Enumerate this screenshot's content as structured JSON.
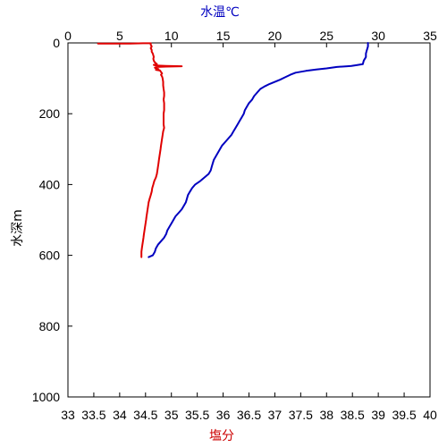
{
  "chart_data": {
    "type": "line",
    "axes": {
      "depth": {
        "label": "水深m",
        "range": [
          0,
          1000
        ],
        "inverted": true,
        "ticks": [
          0,
          200,
          400,
          600,
          800,
          1000
        ]
      },
      "temperature": {
        "label": "水温℃",
        "position": "top",
        "range": [
          0,
          35
        ],
        "ticks": [
          0,
          5,
          10,
          15,
          20,
          25,
          30,
          35
        ]
      },
      "salinity": {
        "label": "塩分",
        "position": "bottom",
        "range": [
          33,
          40
        ],
        "ticks": [
          33,
          33.5,
          34,
          34.5,
          35,
          35.5,
          36,
          36.5,
          37,
          37.5,
          38,
          38.5,
          39,
          39.5,
          40
        ]
      }
    },
    "grid": false,
    "legend": "none",
    "series": [
      {
        "axis": "salinity",
        "color": "#e00000",
        "points": [
          [
            33.58,
            2
          ],
          [
            33.9,
            2
          ],
          [
            34.2,
            2
          ],
          [
            34.45,
            1
          ],
          [
            34.6,
            1
          ],
          [
            34.6,
            5
          ],
          [
            34.62,
            10
          ],
          [
            34.6,
            15
          ],
          [
            34.62,
            20
          ],
          [
            34.62,
            25
          ],
          [
            34.64,
            30
          ],
          [
            34.65,
            35
          ],
          [
            34.66,
            40
          ],
          [
            34.65,
            45
          ],
          [
            34.66,
            50
          ],
          [
            34.68,
            55
          ],
          [
            34.72,
            60
          ],
          [
            34.66,
            62
          ],
          [
            34.7,
            64
          ],
          [
            34.9,
            65
          ],
          [
            35.2,
            66
          ],
          [
            34.9,
            67
          ],
          [
            34.72,
            68
          ],
          [
            34.68,
            70
          ],
          [
            34.7,
            72
          ],
          [
            34.75,
            74
          ],
          [
            34.7,
            76
          ],
          [
            34.78,
            78
          ],
          [
            34.8,
            82
          ],
          [
            34.82,
            86
          ],
          [
            34.8,
            90
          ],
          [
            34.82,
            95
          ],
          [
            34.83,
            100
          ],
          [
            34.84,
            110
          ],
          [
            34.84,
            120
          ],
          [
            34.85,
            130
          ],
          [
            34.86,
            140
          ],
          [
            34.86,
            150
          ],
          [
            34.85,
            160
          ],
          [
            34.86,
            170
          ],
          [
            34.86,
            180
          ],
          [
            34.86,
            190
          ],
          [
            34.85,
            200
          ],
          [
            34.85,
            210
          ],
          [
            34.85,
            220
          ],
          [
            34.85,
            230
          ],
          [
            34.86,
            240
          ],
          [
            34.84,
            250
          ],
          [
            34.83,
            260
          ],
          [
            34.82,
            270
          ],
          [
            34.81,
            280
          ],
          [
            34.8,
            290
          ],
          [
            34.79,
            300
          ],
          [
            34.78,
            310
          ],
          [
            34.77,
            320
          ],
          [
            34.76,
            330
          ],
          [
            34.75,
            340
          ],
          [
            34.74,
            350
          ],
          [
            34.73,
            360
          ],
          [
            34.72,
            370
          ],
          [
            34.7,
            380
          ],
          [
            34.67,
            390
          ],
          [
            34.65,
            400
          ],
          [
            34.63,
            410
          ],
          [
            34.62,
            420
          ],
          [
            34.6,
            430
          ],
          [
            34.58,
            440
          ],
          [
            34.56,
            450
          ],
          [
            34.55,
            460
          ],
          [
            34.54,
            470
          ],
          [
            34.53,
            480
          ],
          [
            34.52,
            490
          ],
          [
            34.51,
            500
          ],
          [
            34.5,
            510
          ],
          [
            34.49,
            520
          ],
          [
            34.48,
            530
          ],
          [
            34.47,
            540
          ],
          [
            34.46,
            550
          ],
          [
            34.45,
            560
          ],
          [
            34.44,
            570
          ],
          [
            34.43,
            580
          ],
          [
            34.42,
            590
          ],
          [
            34.42,
            605
          ]
        ]
      },
      {
        "axis": "temperature",
        "color": "#0000c0",
        "points": [
          [
            29.0,
            0
          ],
          [
            29.0,
            10
          ],
          [
            28.9,
            20
          ],
          [
            28.8,
            30
          ],
          [
            28.8,
            40
          ],
          [
            28.6,
            50
          ],
          [
            28.5,
            60
          ],
          [
            27.9,
            63
          ],
          [
            27.4,
            65
          ],
          [
            27.0,
            66
          ],
          [
            26.0,
            68
          ],
          [
            25.0,
            72
          ],
          [
            24.0,
            75
          ],
          [
            23.0,
            79
          ],
          [
            22.0,
            84
          ],
          [
            21.5,
            90
          ],
          [
            21.0,
            97
          ],
          [
            20.5,
            104
          ],
          [
            20.0,
            110
          ],
          [
            19.5,
            116
          ],
          [
            19.0,
            123
          ],
          [
            18.6,
            130
          ],
          [
            18.3,
            140
          ],
          [
            18.0,
            150
          ],
          [
            17.8,
            160
          ],
          [
            17.5,
            170
          ],
          [
            17.3,
            180
          ],
          [
            17.1,
            190
          ],
          [
            17.0,
            200
          ],
          [
            16.8,
            210
          ],
          [
            16.6,
            220
          ],
          [
            16.4,
            230
          ],
          [
            16.2,
            240
          ],
          [
            16.0,
            250
          ],
          [
            15.8,
            260
          ],
          [
            15.5,
            270
          ],
          [
            15.2,
            280
          ],
          [
            14.9,
            290
          ],
          [
            14.7,
            300
          ],
          [
            14.5,
            310
          ],
          [
            14.3,
            320
          ],
          [
            14.1,
            330
          ],
          [
            14.0,
            340
          ],
          [
            13.9,
            350
          ],
          [
            13.8,
            360
          ],
          [
            13.6,
            370
          ],
          [
            13.2,
            380
          ],
          [
            12.8,
            390
          ],
          [
            12.3,
            400
          ],
          [
            12.0,
            410
          ],
          [
            11.8,
            420
          ],
          [
            11.6,
            430
          ],
          [
            11.5,
            440
          ],
          [
            11.4,
            450
          ],
          [
            11.2,
            460
          ],
          [
            11.0,
            470
          ],
          [
            10.7,
            480
          ],
          [
            10.4,
            490
          ],
          [
            10.2,
            500
          ],
          [
            10.0,
            510
          ],
          [
            9.8,
            520
          ],
          [
            9.6,
            530
          ],
          [
            9.5,
            540
          ],
          [
            9.3,
            550
          ],
          [
            9.0,
            560
          ],
          [
            8.7,
            570
          ],
          [
            8.5,
            580
          ],
          [
            8.4,
            590
          ],
          [
            8.2,
            600
          ],
          [
            7.8,
            605
          ]
        ]
      }
    ]
  }
}
